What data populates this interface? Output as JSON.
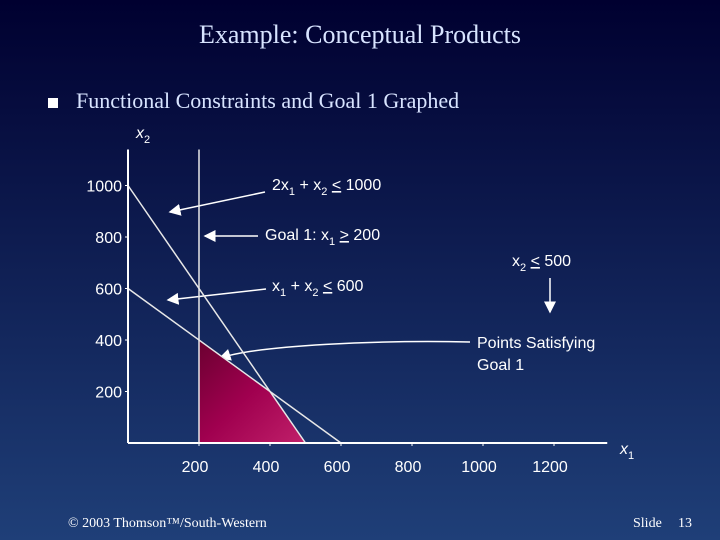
{
  "title": "Example:  Conceptual Products",
  "bullet": "Functional Constraints and Goal 1 Graphed",
  "footer": "© 2003 Thomson™/South-Western",
  "slide_label": "Slide",
  "slide_number": 13,
  "chart_data": {
    "type": "lp_region",
    "x_label": [
      {
        "text": "x",
        "style": "italic"
      },
      {
        "text": "1",
        "style": "sub"
      }
    ],
    "y_label": [
      {
        "text": "x",
        "style": "italic"
      },
      {
        "text": "2",
        "style": "sub"
      }
    ],
    "xlim": [
      0,
      1350
    ],
    "ylim": [
      0,
      1140
    ],
    "xticks": [
      200,
      400,
      600,
      800,
      1000,
      1200
    ],
    "yticks": [
      200,
      400,
      600,
      800,
      1000
    ],
    "series": [
      {
        "x": [
          0,
          500
        ],
        "values": [
          1000,
          0
        ],
        "color": "#e8e8e8"
      },
      {
        "x": [
          0,
          600
        ],
        "values": [
          600,
          0
        ],
        "color": "#e8e8e8"
      },
      {
        "x": [
          200,
          200
        ],
        "values": [
          0,
          1140
        ],
        "color": "#e8e8e8"
      }
    ],
    "region": {
      "x": [
        200,
        200,
        400,
        500
      ],
      "values": [
        0,
        400,
        200,
        0
      ],
      "color": "#a0004f"
    },
    "annotations": [
      {
        "parts": [
          {
            "text": "2x"
          },
          {
            "text": "1",
            "style": "sub"
          },
          {
            "text": " + x"
          },
          {
            "text": "2",
            "style": "sub"
          },
          {
            "text": " "
          },
          {
            "text": "<",
            "style": "underline"
          },
          {
            "text": " 1000"
          }
        ]
      },
      {
        "parts": [
          {
            "text": "Goal 1:  x"
          },
          {
            "text": "1",
            "style": "sub"
          },
          {
            "text": " "
          },
          {
            "text": ">",
            "style": "underline"
          },
          {
            "text": " 200"
          }
        ]
      },
      {
        "parts": [
          {
            "text": "x"
          },
          {
            "text": "2",
            "style": "sub"
          },
          {
            "text": " "
          },
          {
            "text": "<",
            "style": "underline"
          },
          {
            "text": " 500"
          }
        ]
      },
      {
        "parts": [
          {
            "text": "x"
          },
          {
            "text": "1",
            "style": "sub"
          },
          {
            "text": " + x"
          },
          {
            "text": "2",
            "style": "sub"
          },
          {
            "text": " "
          },
          {
            "text": "<",
            "style": "underline"
          },
          {
            "text": " 600"
          }
        ]
      },
      {
        "parts": [
          {
            "text": "Points Satisfying"
          }
        ]
      },
      {
        "parts": [
          {
            "text": "Goal 1"
          }
        ]
      }
    ]
  }
}
